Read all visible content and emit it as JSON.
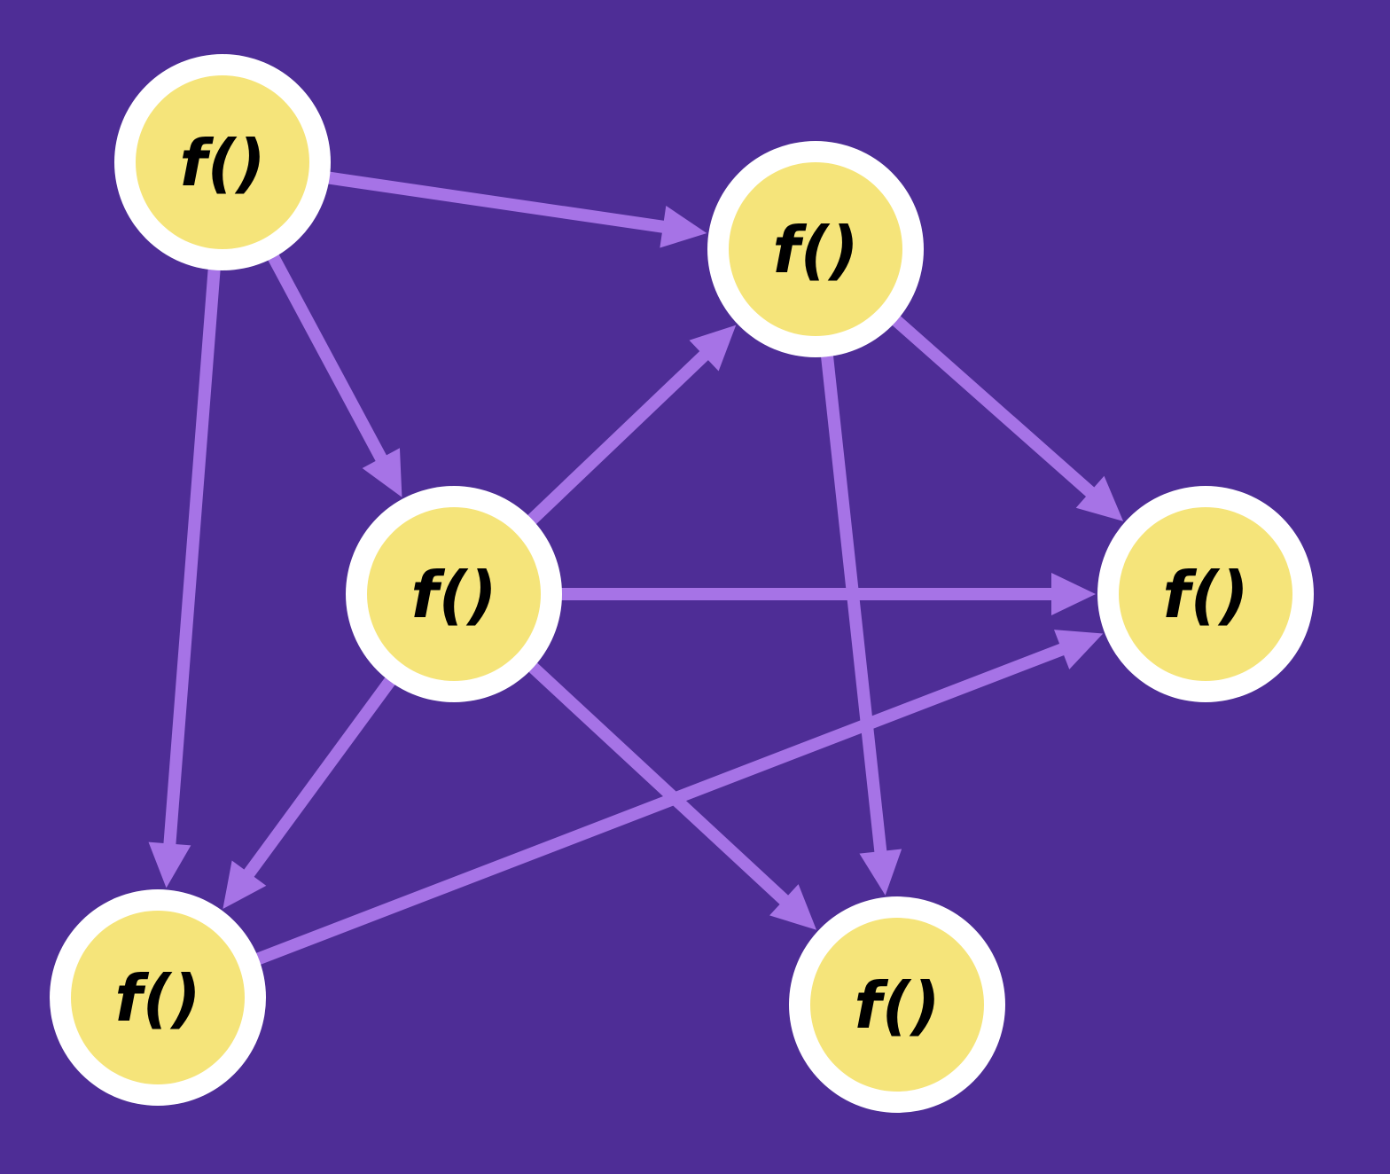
{
  "colors": {
    "background": "#4e2d96",
    "edge": "#a673e6",
    "node_fill": "#f5e47a",
    "node_ring": "#ffffff",
    "label": "#000000"
  },
  "nodes": [
    {
      "id": "n1",
      "label": "f()"
    },
    {
      "id": "n2",
      "label": "f()"
    },
    {
      "id": "n3",
      "label": "f()"
    },
    {
      "id": "n4",
      "label": "f()"
    },
    {
      "id": "n5",
      "label": "f()"
    },
    {
      "id": "n6",
      "label": "f()"
    }
  ],
  "edges": [
    {
      "from": "n1",
      "to": "n2"
    },
    {
      "from": "n1",
      "to": "n3"
    },
    {
      "from": "n1",
      "to": "n5"
    },
    {
      "from": "n3",
      "to": "n2"
    },
    {
      "from": "n3",
      "to": "n4"
    },
    {
      "from": "n3",
      "to": "n5"
    },
    {
      "from": "n3",
      "to": "n6"
    },
    {
      "from": "n2",
      "to": "n4"
    },
    {
      "from": "n2",
      "to": "n6"
    },
    {
      "from": "n5",
      "to": "n4"
    }
  ]
}
